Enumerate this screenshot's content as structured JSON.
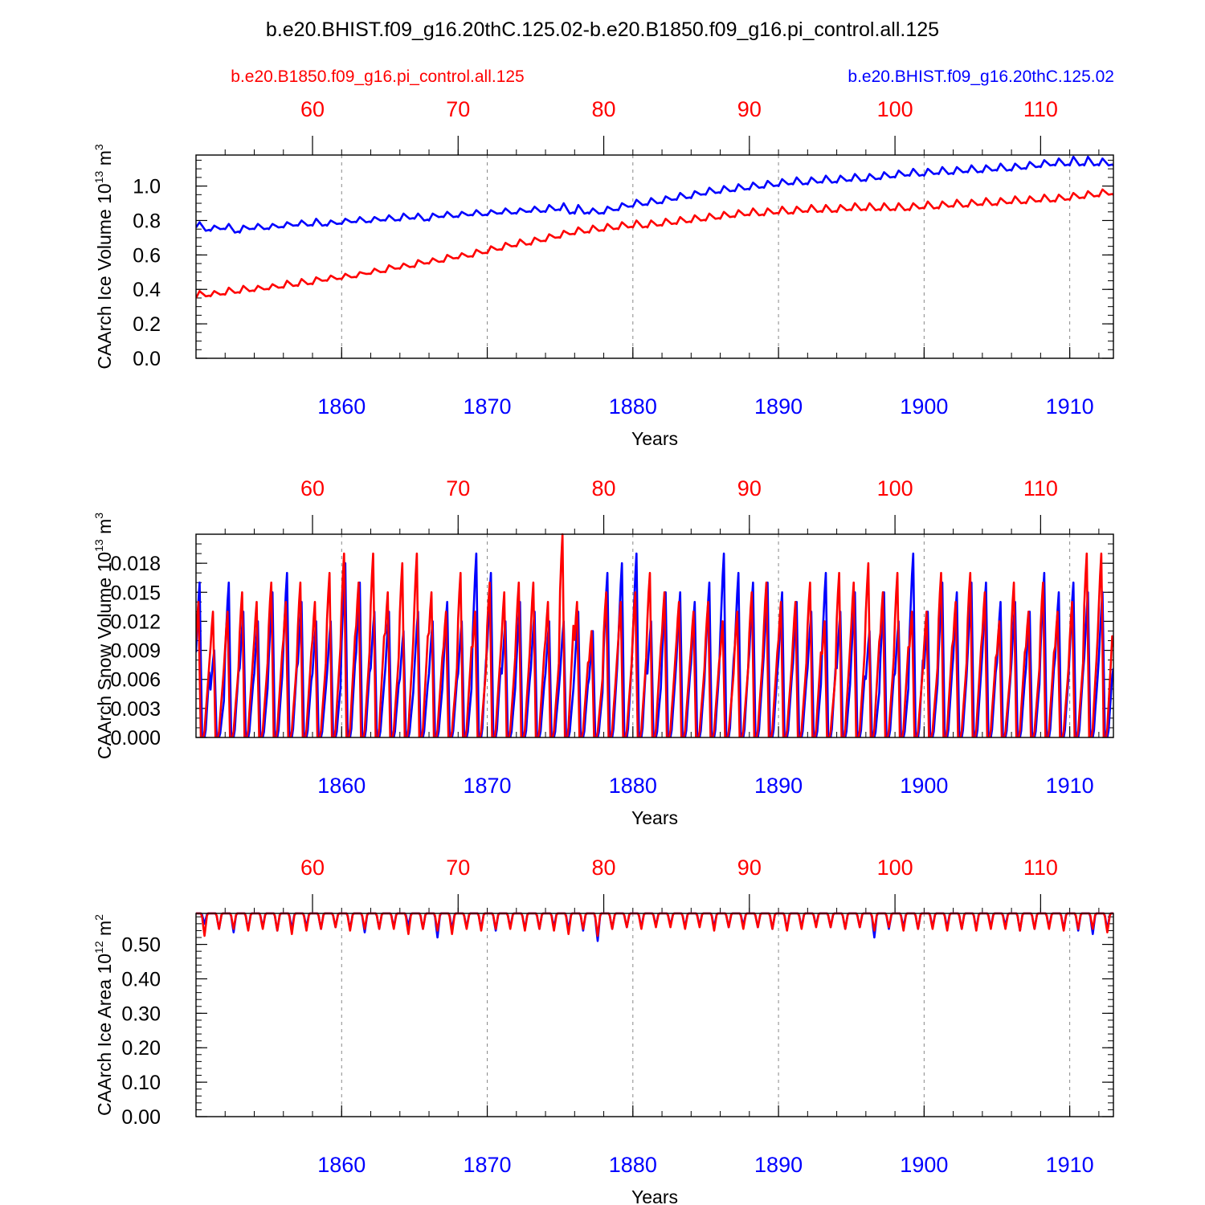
{
  "figure": {
    "main_title": "b.e20.BHIST.f09_g16.20thC.125.02-b.e20.B1850.f09_g16.pi_control.all.125",
    "legend_left": "b.e20.B1850.f09_g16.pi_control.all.125",
    "legend_right": "b.e20.BHIST.f09_g16.20thC.125.02",
    "colors": {
      "control": "#ff0000",
      "hist": "#0000ff",
      "axis": "#000000",
      "grid": "#888888"
    }
  },
  "chart_data": [
    {
      "type": "line",
      "ylabel": "CAArch Ice Volume 10",
      "ylabel_exp": "13",
      "ylabel_unit": " m",
      "ylabel_unit_exp": "3",
      "xlabel": "Years",
      "xlim": [
        1850.0,
        1913.0
      ],
      "ylim": [
        0.0,
        1.18
      ],
      "yticks": [
        0.0,
        0.2,
        0.4,
        0.6,
        0.8,
        1.0
      ],
      "ytick_labels": [
        "0.0",
        "0.2",
        "0.4",
        "0.6",
        "0.8",
        "1.0"
      ],
      "ytick_minor_step": 0.05,
      "bottom_ticks": [
        1860,
        1870,
        1880,
        1890,
        1900,
        1910
      ],
      "bottom_tick_labels": [
        "1860",
        "1870",
        "1880",
        "1890",
        "1900",
        "1910"
      ],
      "top_tick_labels": [
        "60",
        "70",
        "80",
        "90",
        "100",
        "110"
      ],
      "series": [
        {
          "name": "b.e20.BHIST.f09_g16.20thC.125.02",
          "color": "#0000ff",
          "annual_max": [
            0.79,
            0.77,
            0.78,
            0.77,
            0.78,
            0.78,
            0.79,
            0.8,
            0.81,
            0.8,
            0.81,
            0.82,
            0.82,
            0.83,
            0.84,
            0.84,
            0.84,
            0.85,
            0.85,
            0.86,
            0.86,
            0.87,
            0.87,
            0.88,
            0.89,
            0.9,
            0.89,
            0.87,
            0.88,
            0.9,
            0.92,
            0.93,
            0.94,
            0.96,
            0.97,
            0.99,
            1.0,
            1.01,
            1.02,
            1.03,
            1.04,
            1.05,
            1.05,
            1.06,
            1.06,
            1.07,
            1.07,
            1.08,
            1.09,
            1.1,
            1.1,
            1.11,
            1.11,
            1.12,
            1.12,
            1.13,
            1.13,
            1.14,
            1.15,
            1.16,
            1.17,
            1.17,
            1.16,
            1.16
          ],
          "annual_min": [
            0.76,
            0.74,
            0.75,
            0.73,
            0.75,
            0.75,
            0.76,
            0.77,
            0.77,
            0.77,
            0.78,
            0.79,
            0.79,
            0.8,
            0.8,
            0.81,
            0.8,
            0.82,
            0.82,
            0.83,
            0.83,
            0.84,
            0.84,
            0.85,
            0.85,
            0.86,
            0.84,
            0.84,
            0.84,
            0.86,
            0.88,
            0.89,
            0.9,
            0.92,
            0.93,
            0.95,
            0.96,
            0.97,
            0.98,
            0.99,
            1.0,
            1.01,
            1.01,
            1.02,
            1.02,
            1.03,
            1.03,
            1.04,
            1.05,
            1.06,
            1.06,
            1.07,
            1.07,
            1.08,
            1.08,
            1.09,
            1.09,
            1.1,
            1.11,
            1.12,
            1.12,
            1.12,
            1.12,
            1.12
          ]
        },
        {
          "name": "b.e20.B1850.f09_g16.pi_control.all.125",
          "color": "#ff0000",
          "annual_max": [
            0.39,
            0.39,
            0.41,
            0.42,
            0.42,
            0.43,
            0.45,
            0.46,
            0.47,
            0.48,
            0.49,
            0.5,
            0.52,
            0.54,
            0.55,
            0.57,
            0.58,
            0.6,
            0.61,
            0.63,
            0.65,
            0.67,
            0.69,
            0.7,
            0.72,
            0.74,
            0.76,
            0.77,
            0.78,
            0.79,
            0.8,
            0.8,
            0.81,
            0.82,
            0.83,
            0.84,
            0.85,
            0.86,
            0.87,
            0.87,
            0.88,
            0.88,
            0.89,
            0.89,
            0.89,
            0.9,
            0.9,
            0.9,
            0.9,
            0.9,
            0.91,
            0.91,
            0.92,
            0.92,
            0.93,
            0.93,
            0.94,
            0.94,
            0.95,
            0.95,
            0.96,
            0.97,
            0.98,
            0.99
          ],
          "annual_min": [
            0.35,
            0.36,
            0.37,
            0.38,
            0.39,
            0.4,
            0.41,
            0.42,
            0.43,
            0.45,
            0.46,
            0.47,
            0.49,
            0.5,
            0.52,
            0.53,
            0.55,
            0.56,
            0.58,
            0.59,
            0.61,
            0.63,
            0.65,
            0.66,
            0.68,
            0.7,
            0.72,
            0.73,
            0.74,
            0.75,
            0.76,
            0.76,
            0.77,
            0.78,
            0.79,
            0.8,
            0.81,
            0.82,
            0.83,
            0.83,
            0.84,
            0.84,
            0.85,
            0.85,
            0.85,
            0.86,
            0.86,
            0.86,
            0.86,
            0.86,
            0.87,
            0.87,
            0.88,
            0.88,
            0.89,
            0.89,
            0.9,
            0.9,
            0.91,
            0.91,
            0.92,
            0.93,
            0.94,
            0.95
          ]
        }
      ]
    },
    {
      "type": "line",
      "ylabel": "CAArch Snow Volume 10",
      "ylabel_exp": "13",
      "ylabel_unit": " m",
      "ylabel_unit_exp": "3",
      "xlabel": "Years",
      "xlim": [
        1850.0,
        1913.0
      ],
      "ylim": [
        0.0,
        0.021
      ],
      "yticks": [
        0.0,
        0.003,
        0.006,
        0.009,
        0.012,
        0.015,
        0.018
      ],
      "ytick_labels": [
        "0.000",
        "0.003",
        "0.006",
        "0.009",
        "0.012",
        "0.015",
        "0.018"
      ],
      "ytick_minor_step": 0.001,
      "bottom_ticks": [
        1860,
        1870,
        1880,
        1890,
        1900,
        1910
      ],
      "bottom_tick_labels": [
        "1860",
        "1870",
        "1880",
        "1890",
        "1900",
        "1910"
      ],
      "top_tick_labels": [
        "60",
        "70",
        "80",
        "90",
        "100",
        "110"
      ],
      "series": [
        {
          "name": "b.e20.BHIST.f09_g16.20thC.125.02",
          "color": "#0000ff",
          "annual_peak": [
            0.016,
            0.009,
            0.016,
            0.013,
            0.012,
            0.015,
            0.017,
            0.014,
            0.012,
            0.012,
            0.018,
            0.016,
            0.013,
            0.013,
            0.011,
            0.013,
            0.012,
            0.014,
            0.012,
            0.019,
            0.017,
            0.012,
            0.014,
            0.013,
            0.012,
            0.012,
            0.013,
            0.011,
            0.017,
            0.018,
            0.019,
            0.012,
            0.015,
            0.015,
            0.014,
            0.016,
            0.019,
            0.017,
            0.016,
            0.016,
            0.015,
            0.014,
            0.013,
            0.017,
            0.013,
            0.015,
            0.011,
            0.015,
            0.012,
            0.019,
            0.013,
            0.016,
            0.015,
            0.016,
            0.016,
            0.014,
            0.014,
            0.013,
            0.017,
            0.015,
            0.016,
            0.015,
            0.015,
            0.013
          ],
          "annual_min": [
            0.0,
            0.0,
            0.0,
            0.0,
            0.0,
            0.0,
            0.0,
            0.0,
            0.0,
            0.0,
            0.0,
            0.0,
            0.0,
            0.0,
            0.0,
            0.0,
            0.0,
            0.0,
            0.0,
            0.0,
            0.0,
            0.0,
            0.0,
            0.0,
            0.0,
            0.0,
            0.0,
            0.0,
            0.0,
            0.0,
            0.0,
            0.0,
            0.0,
            0.0,
            0.0,
            0.0,
            0.0,
            0.0,
            0.0,
            0.0,
            0.0,
            0.0,
            0.0,
            0.0,
            0.0,
            0.0,
            0.0,
            0.0,
            0.0,
            0.0,
            0.0,
            0.0,
            0.0,
            0.0,
            0.0,
            0.0,
            0.0,
            0.0,
            0.0,
            0.0,
            0.0,
            0.0,
            0.0,
            0.0
          ]
        },
        {
          "name": "b.e20.B1850.f09_g16.pi_control.all.125",
          "color": "#ff0000",
          "annual_peak": [
            0.014,
            0.013,
            0.013,
            0.015,
            0.014,
            0.016,
            0.014,
            0.016,
            0.014,
            0.017,
            0.019,
            0.016,
            0.019,
            0.015,
            0.018,
            0.019,
            0.015,
            0.013,
            0.017,
            0.013,
            0.016,
            0.015,
            0.016,
            0.016,
            0.014,
            0.021,
            0.014,
            0.011,
            0.015,
            0.014,
            0.015,
            0.017,
            0.015,
            0.014,
            0.013,
            0.014,
            0.012,
            0.013,
            0.015,
            0.016,
            0.014,
            0.014,
            0.016,
            0.012,
            0.017,
            0.016,
            0.018,
            0.015,
            0.017,
            0.013,
            0.013,
            0.017,
            0.014,
            0.017,
            0.015,
            0.012,
            0.016,
            0.013,
            0.016,
            0.013,
            0.014,
            0.019,
            0.019,
            0.013
          ],
          "annual_min": [
            0.0,
            0.0,
            0.0,
            0.0,
            0.0,
            0.0,
            0.0,
            0.0,
            0.0,
            0.0,
            0.0,
            0.0,
            0.0,
            0.0,
            0.0,
            0.0,
            0.0,
            0.0,
            0.0,
            0.0,
            0.0,
            0.0,
            0.0,
            0.0,
            0.0,
            0.0,
            0.0,
            0.0,
            0.0,
            0.0,
            0.0,
            0.0,
            0.0,
            0.0,
            0.0,
            0.0,
            0.0,
            0.0,
            0.0,
            0.0,
            0.0,
            0.0,
            0.0,
            0.0,
            0.0,
            0.0,
            0.0,
            0.0,
            0.0,
            0.0,
            0.0,
            0.0,
            0.0,
            0.0,
            0.0,
            0.0,
            0.0,
            0.0,
            0.0,
            0.0,
            0.0,
            0.0,
            0.0,
            0.0
          ]
        }
      ]
    },
    {
      "type": "line",
      "ylabel": "CAArch Ice Area 10",
      "ylabel_exp": "12",
      "ylabel_unit": " m",
      "ylabel_unit_exp": "2",
      "xlabel": "Years",
      "xlim": [
        1850.0,
        1913.0
      ],
      "ylim": [
        0.0,
        0.59
      ],
      "yticks": [
        0.0,
        0.1,
        0.2,
        0.3,
        0.4,
        0.5
      ],
      "ytick_labels": [
        "0.00",
        "0.10",
        "0.20",
        "0.30",
        "0.40",
        "0.50"
      ],
      "ytick_minor_step": 0.02,
      "bottom_ticks": [
        1860,
        1870,
        1880,
        1890,
        1900,
        1910
      ],
      "bottom_tick_labels": [
        "1860",
        "1870",
        "1880",
        "1890",
        "1900",
        "1910"
      ],
      "top_tick_labels": [
        "60",
        "70",
        "80",
        "90",
        "100",
        "110"
      ],
      "series": [
        {
          "name": "b.e20.BHIST.f09_g16.20thC.125.02",
          "color": "#0000ff",
          "annual_max": [
            0.59,
            0.59,
            0.59,
            0.59,
            0.59,
            0.59,
            0.59,
            0.59,
            0.59,
            0.59,
            0.59,
            0.59,
            0.59,
            0.59,
            0.59,
            0.59,
            0.59,
            0.59,
            0.59,
            0.59,
            0.59,
            0.59,
            0.59,
            0.59,
            0.59,
            0.59,
            0.59,
            0.59,
            0.59,
            0.59,
            0.59,
            0.59,
            0.59,
            0.59,
            0.59,
            0.59,
            0.59,
            0.59,
            0.59,
            0.59,
            0.59,
            0.59,
            0.59,
            0.59,
            0.59,
            0.59,
            0.59,
            0.59,
            0.59,
            0.59,
            0.59,
            0.59,
            0.59,
            0.59,
            0.59,
            0.59,
            0.59,
            0.59,
            0.59,
            0.59,
            0.59,
            0.59,
            0.59,
            0.59
          ],
          "annual_min": [
            0.56,
            0.545,
            0.535,
            0.545,
            0.55,
            0.54,
            0.545,
            0.55,
            0.545,
            0.55,
            0.545,
            0.535,
            0.545,
            0.55,
            0.555,
            0.545,
            0.52,
            0.545,
            0.55,
            0.545,
            0.54,
            0.55,
            0.545,
            0.545,
            0.55,
            0.545,
            0.54,
            0.51,
            0.545,
            0.55,
            0.55,
            0.555,
            0.555,
            0.55,
            0.555,
            0.55,
            0.55,
            0.555,
            0.55,
            0.545,
            0.545,
            0.55,
            0.555,
            0.55,
            0.545,
            0.55,
            0.52,
            0.545,
            0.55,
            0.545,
            0.55,
            0.55,
            0.545,
            0.545,
            0.55,
            0.555,
            0.54,
            0.545,
            0.55,
            0.545,
            0.54,
            0.53,
            0.545,
            0.545
          ]
        },
        {
          "name": "b.e20.B1850.f09_g16.pi_control.all.125",
          "color": "#ff0000",
          "annual_max": [
            0.59,
            0.59,
            0.59,
            0.59,
            0.59,
            0.59,
            0.59,
            0.59,
            0.59,
            0.59,
            0.59,
            0.59,
            0.59,
            0.59,
            0.59,
            0.59,
            0.59,
            0.59,
            0.59,
            0.59,
            0.59,
            0.59,
            0.59,
            0.59,
            0.59,
            0.59,
            0.59,
            0.59,
            0.59,
            0.59,
            0.59,
            0.59,
            0.59,
            0.59,
            0.59,
            0.59,
            0.59,
            0.59,
            0.59,
            0.59,
            0.59,
            0.59,
            0.59,
            0.59,
            0.59,
            0.59,
            0.59,
            0.59,
            0.59,
            0.59,
            0.59,
            0.59,
            0.59,
            0.59,
            0.59,
            0.59,
            0.59,
            0.59,
            0.59,
            0.59,
            0.59,
            0.59,
            0.59,
            0.59
          ],
          "annual_min": [
            0.525,
            0.545,
            0.545,
            0.54,
            0.545,
            0.54,
            0.53,
            0.54,
            0.545,
            0.55,
            0.54,
            0.545,
            0.545,
            0.545,
            0.53,
            0.545,
            0.54,
            0.53,
            0.545,
            0.54,
            0.545,
            0.545,
            0.54,
            0.545,
            0.54,
            0.53,
            0.545,
            0.525,
            0.545,
            0.55,
            0.545,
            0.55,
            0.55,
            0.545,
            0.55,
            0.54,
            0.55,
            0.545,
            0.55,
            0.545,
            0.54,
            0.545,
            0.55,
            0.55,
            0.545,
            0.55,
            0.54,
            0.55,
            0.54,
            0.545,
            0.545,
            0.54,
            0.545,
            0.54,
            0.545,
            0.545,
            0.54,
            0.545,
            0.545,
            0.54,
            0.545,
            0.545,
            0.535,
            0.54
          ]
        }
      ]
    }
  ]
}
